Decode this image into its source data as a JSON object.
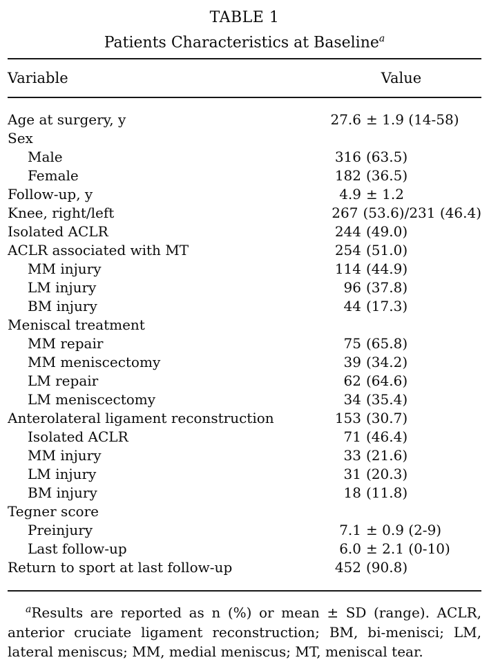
{
  "table": {
    "title": "TABLE 1",
    "subtitle": "Patients Characteristics at Baseline",
    "subtitle_superscript": "a",
    "columns": {
      "variable": "Variable",
      "value": "Value"
    },
    "rows": [
      {
        "label": "Age at surgery, y",
        "indent": false,
        "num": "27.6",
        "rest": "± 1.9 (14-58)"
      },
      {
        "label": "Sex",
        "indent": false,
        "num": "",
        "rest": ""
      },
      {
        "label": "Male",
        "indent": true,
        "num": "316",
        "rest": "(63.5)"
      },
      {
        "label": "Female",
        "indent": true,
        "num": "182",
        "rest": "(36.5)"
      },
      {
        "label": "Follow-up, y",
        "indent": false,
        "num": "4.9",
        "rest": "± 1.2"
      },
      {
        "label": "Knee, right/left",
        "indent": false,
        "num": "267",
        "rest": "(53.6)/231 (46.4)"
      },
      {
        "label": "Isolated ACLR",
        "indent": false,
        "num": "244",
        "rest": "(49.0)"
      },
      {
        "label": "ACLR associated with MT",
        "indent": false,
        "num": "254",
        "rest": "(51.0)"
      },
      {
        "label": "MM injury",
        "indent": true,
        "num": "114",
        "rest": "(44.9)"
      },
      {
        "label": "LM injury",
        "indent": true,
        "num": "96",
        "rest": "(37.8)"
      },
      {
        "label": "BM injury",
        "indent": true,
        "num": "44",
        "rest": "(17.3)"
      },
      {
        "label": "Meniscal treatment",
        "indent": false,
        "num": "",
        "rest": ""
      },
      {
        "label": "MM repair",
        "indent": true,
        "num": "75",
        "rest": "(65.8)"
      },
      {
        "label": "MM meniscectomy",
        "indent": true,
        "num": "39",
        "rest": "(34.2)"
      },
      {
        "label": "LM repair",
        "indent": true,
        "num": "62",
        "rest": "(64.6)"
      },
      {
        "label": "LM meniscectomy",
        "indent": true,
        "num": "34",
        "rest": "(35.4)"
      },
      {
        "label": "Anterolateral ligament reconstruction",
        "indent": false,
        "num": "153",
        "rest": "(30.7)"
      },
      {
        "label": "Isolated ACLR",
        "indent": true,
        "num": "71",
        "rest": "(46.4)"
      },
      {
        "label": "MM injury",
        "indent": true,
        "num": "33",
        "rest": "(21.6)"
      },
      {
        "label": "LM injury",
        "indent": true,
        "num": "31",
        "rest": "(20.3)"
      },
      {
        "label": "BM injury",
        "indent": true,
        "num": "18",
        "rest": "(11.8)"
      },
      {
        "label": "Tegner score",
        "indent": false,
        "num": "",
        "rest": ""
      },
      {
        "label": "Preinjury",
        "indent": true,
        "num": "7.1",
        "rest": "± 0.9 (2-9)"
      },
      {
        "label": "Last follow-up",
        "indent": true,
        "num": "6.0",
        "rest": "± 2.1 (0-10)"
      },
      {
        "label": "Return to sport at last follow-up",
        "indent": false,
        "num": "452",
        "rest": "(90.8)"
      }
    ],
    "footnote": {
      "marker": "a",
      "lines": [
        "Results are reported as n (%) or mean ± SD (range). ACLR,",
        "anterior cruciate ligament reconstruction; BM, bi-menisci; LM,",
        "lateral meniscus; MM, medial meniscus; MT, meniscal tear."
      ]
    }
  },
  "colors": {
    "text": "#0b0b0b",
    "background": "#ffffff",
    "rule": "#151515"
  }
}
